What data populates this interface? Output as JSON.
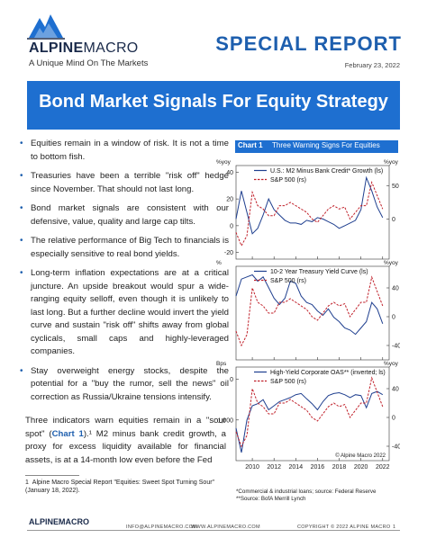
{
  "header": {
    "brand_bold": "ALPINE",
    "brand_thin": "MACRO",
    "tagline": "A Unique Mind On The Markets",
    "report_type": "SPECIAL REPORT",
    "date": "February 23, 2022",
    "title": "Bond Market Signals For Equity Strategy"
  },
  "bullets": [
    "Equities remain in a window of risk. It is not a time to bottom fish.",
    "Treasuries have been a terrible \"risk off\" hedge since November. That should not last long.",
    "Bond market signals are consistent with our defensive, value, quality and large cap tilts.",
    "The relative performance of Big Tech to financials is especially sensitive to real bond yields.",
    "Long-term inflation expectations are at a critical juncture. An upside breakout would spur a wide-ranging equity selloff, even though it is unlikely to last long. But a further decline would invert the yield curve and sustain \"risk off\" shifts away from global cyclicals, small caps and highly-leveraged companies.",
    "Stay overweight energy stocks, despite the potential for a \"buy the rumor, sell the news\" oil correction as Russia/Ukraine tensions intensify."
  ],
  "body": {
    "para_start": "Three indicators warn equities remain in a \"sour spot\" (",
    "para_ref": "Chart 1",
    "para_end": ").¹ M2 minus bank credit growth, a proxy for excess liquidity available for financial assets, is at a 14-month low even before the Fed"
  },
  "footnote": {
    "number": "1",
    "text": "Alpine Macro Special Report \"Equities: Sweet Spot Turning Sour\" (January 18, 2022)."
  },
  "chart_data": {
    "type": "line",
    "label": "Chart 1",
    "title": "Three Warning Signs For Equities",
    "x_ticks": [
      "2010",
      "2012",
      "2014",
      "2016",
      "2018",
      "2020",
      "2022"
    ],
    "panels": [
      {
        "left_unit": "%yoy",
        "right_unit": "%yoy",
        "left_ticks": [
          "40",
          "20",
          "0",
          "-20"
        ],
        "right_ticks": [
          "50",
          "0"
        ],
        "series": [
          {
            "name": "U.S.: M2 Minus Bank Credit* Growth (ls)",
            "color": "#1f3f8f",
            "style": "solid",
            "x": [
              2008.5,
              2009,
              2009.5,
              2010,
              2010.5,
              2011,
              2011.5,
              2012,
              2012.5,
              2013,
              2013.5,
              2014,
              2014.5,
              2015,
              2015.5,
              2016,
              2016.5,
              2017,
              2017.5,
              2018,
              2018.5,
              2019,
              2019.5,
              2020,
              2020.5,
              2021,
              2021.5,
              2022
            ],
            "y": [
              5,
              26,
              10,
              -6,
              -2,
              8,
              20,
              12,
              8,
              4,
              2,
              2,
              1,
              4,
              3,
              6,
              5,
              3,
              1,
              -2,
              0,
              2,
              4,
              12,
              36,
              26,
              14,
              6
            ]
          },
          {
            "name": "S&P 500 (rs)",
            "color": "#c0202a",
            "style": "dashed",
            "x": [
              2008.5,
              2009,
              2009.5,
              2010,
              2010.5,
              2011,
              2011.5,
              2012,
              2012.5,
              2013,
              2013.5,
              2014,
              2014.5,
              2015,
              2015.5,
              2016,
              2016.5,
              2017,
              2017.5,
              2018,
              2018.5,
              2019,
              2019.5,
              2020,
              2020.5,
              2021,
              2021.5,
              2022
            ],
            "y": [
              -20,
              -40,
              -25,
              40,
              20,
              15,
              5,
              5,
              20,
              20,
              25,
              20,
              15,
              10,
              0,
              -5,
              5,
              15,
              20,
              15,
              18,
              0,
              10,
              20,
              20,
              55,
              35,
              15
            ]
          }
        ]
      },
      {
        "left_unit": "%",
        "right_unit": "%yoy",
        "left_ticks": [],
        "right_ticks": [
          "40",
          "0",
          "-40"
        ],
        "series": [
          {
            "name": "10-2 Year Treasury Yield Curve (ls)",
            "color": "#1f3f8f",
            "style": "solid",
            "x": [
              2008.5,
              2009,
              2009.5,
              2010,
              2010.5,
              2011,
              2011.5,
              2012,
              2012.5,
              2013,
              2013.5,
              2014,
              2014.5,
              2015,
              2015.5,
              2016,
              2016.5,
              2017,
              2017.5,
              2018,
              2018.5,
              2019,
              2019.5,
              2020,
              2020.5,
              2021,
              2021.5,
              2022
            ],
            "y": [
              1.8,
              2.6,
              2.7,
              2.8,
              2.5,
              2.7,
              2.2,
              1.7,
              1.4,
              1.7,
              2.5,
              2.4,
              1.8,
              1.5,
              1.4,
              1.1,
              0.9,
              1.2,
              0.8,
              0.6,
              0.3,
              0.2,
              0.0,
              0.3,
              0.6,
              1.5,
              1.2,
              0.5
            ]
          },
          {
            "name": "S&P 500 (rs)",
            "color": "#c0202a",
            "style": "dashed",
            "x": [
              2008.5,
              2009,
              2009.5,
              2010,
              2010.5,
              2011,
              2011.5,
              2012,
              2012.5,
              2013,
              2013.5,
              2014,
              2014.5,
              2015,
              2015.5,
              2016,
              2016.5,
              2017,
              2017.5,
              2018,
              2018.5,
              2019,
              2019.5,
              2020,
              2020.5,
              2021,
              2021.5,
              2022
            ],
            "y": [
              -20,
              -40,
              -25,
              40,
              20,
              15,
              5,
              5,
              20,
              20,
              25,
              20,
              15,
              10,
              0,
              -5,
              5,
              15,
              20,
              15,
              18,
              0,
              10,
              20,
              20,
              55,
              35,
              15
            ]
          }
        ]
      },
      {
        "left_unit": "Bps",
        "right_unit": "%yoy",
        "left_ticks": [
          "0",
          "1,000"
        ],
        "right_ticks": [
          "40",
          "0",
          "-40"
        ],
        "series": [
          {
            "name": "High-Yield Corporate OAS** (inverted; ls)",
            "color": "#1f3f8f",
            "style": "solid",
            "x": [
              2008.5,
              2009,
              2009.5,
              2010,
              2010.5,
              2011,
              2011.5,
              2012,
              2012.5,
              2013,
              2013.5,
              2014,
              2014.5,
              2015,
              2015.5,
              2016,
              2016.5,
              2017,
              2017.5,
              2018,
              2018.5,
              2019,
              2019.5,
              2020,
              2020.5,
              2021,
              2021.5,
              2022
            ],
            "y": [
              1200,
              1800,
              1000,
              650,
              600,
              500,
              750,
              650,
              550,
              500,
              450,
              380,
              350,
              480,
              600,
              750,
              550,
              400,
              350,
              330,
              380,
              450,
              380,
              400,
              700,
              350,
              300,
              380
            ]
          },
          {
            "name": "S&P 500 (rs)",
            "color": "#c0202a",
            "style": "dashed",
            "x": [
              2008.5,
              2009,
              2009.5,
              2010,
              2010.5,
              2011,
              2011.5,
              2012,
              2012.5,
              2013,
              2013.5,
              2014,
              2014.5,
              2015,
              2015.5,
              2016,
              2016.5,
              2017,
              2017.5,
              2018,
              2018.5,
              2019,
              2019.5,
              2020,
              2020.5,
              2021,
              2021.5,
              2022
            ],
            "y": [
              -20,
              -40,
              -25,
              40,
              20,
              15,
              5,
              5,
              20,
              20,
              25,
              20,
              15,
              10,
              0,
              -5,
              5,
              15,
              20,
              15,
              18,
              0,
              10,
              20,
              20,
              55,
              35,
              15
            ]
          }
        ]
      }
    ],
    "copyright": "© Alpine Macro 2022",
    "notes": [
      "*Commercial & industrial loans; source: Federal Reserve",
      "**Source: BofA Merrill Lynch"
    ]
  },
  "footer": {
    "logo": "ALPINEMACRO",
    "email": "INFO@ALPINEMACRO.COM",
    "website": "WWW.ALPINEMACRO.COM",
    "copyright": "COPYRIGHT © 2022 ALPINE MACRO",
    "page": "1"
  },
  "colors": {
    "brand_blue": "#1e6fd0",
    "title_blue": "#1e5fae",
    "series_blue": "#1f3f8f",
    "series_red": "#c0202a"
  }
}
